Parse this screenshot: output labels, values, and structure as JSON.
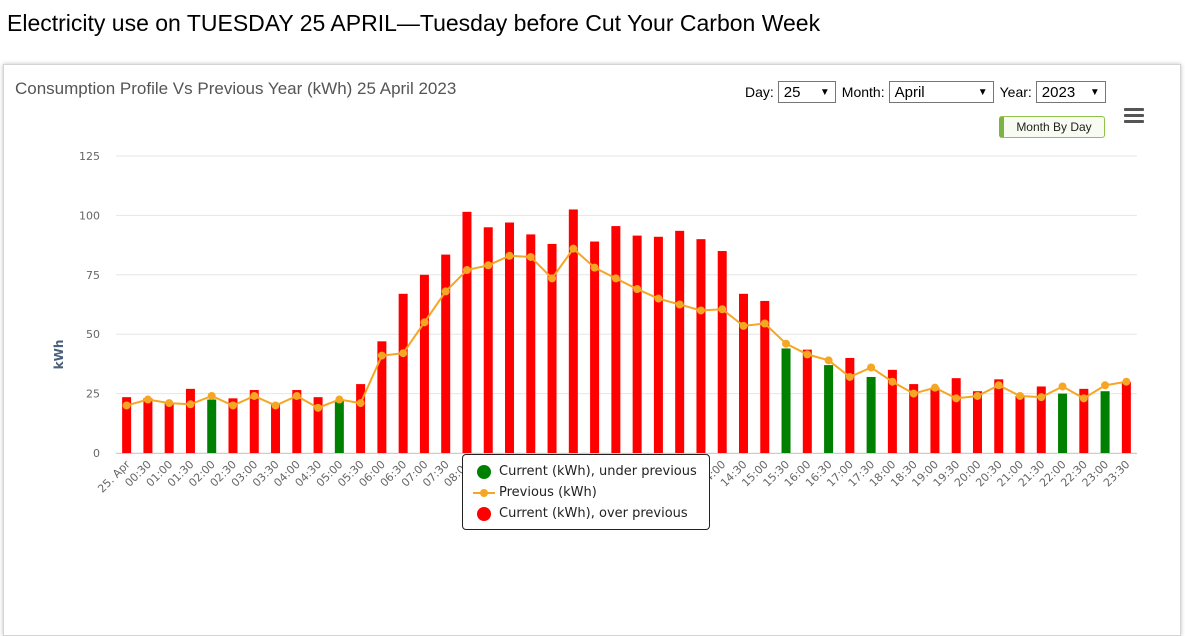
{
  "page": {
    "heading": "Electricity use on TUESDAY 25 APRIL—Tuesday before Cut Your Carbon Week"
  },
  "controls": {
    "day_label": "Day:",
    "day_value": "25",
    "month_label": "Month:",
    "month_value": "April",
    "year_label": "Year:",
    "year_value": "2023",
    "month_by_day_label": "Month By Day"
  },
  "colors": {
    "over": "#ff0000",
    "under": "#008000",
    "previous": "#f5a623",
    "grid": "#e6e6e6"
  },
  "icons": {
    "menu": "hamburger-menu-icon"
  },
  "chart_data": {
    "type": "bar",
    "title": "Consumption Profile Vs Previous Year (kWh) 25 April 2023",
    "ylabel": "kWh",
    "xlabel": "",
    "ylim": [
      0,
      125
    ],
    "yticks": [
      0,
      25,
      50,
      75,
      100,
      125
    ],
    "grid": true,
    "legend_position": "bottom-center",
    "categories": [
      "25. Apr",
      "00:30",
      "01:00",
      "01:30",
      "02:00",
      "02:30",
      "03:00",
      "03:30",
      "04:00",
      "04:30",
      "05:00",
      "05:30",
      "06:00",
      "06:30",
      "07:00",
      "07:30",
      "08:00",
      "08:30",
      "09:00",
      "09:30",
      "10:00",
      "10:30",
      "11:00",
      "11:30",
      "12:00",
      "12:30",
      "13:00",
      "13:30",
      "14:00",
      "14:30",
      "15:00",
      "15:30",
      "16:00",
      "16:30",
      "17:00",
      "17:30",
      "18:00",
      "18:30",
      "19:00",
      "19:30",
      "20:00",
      "20:30",
      "21:00",
      "21:30",
      "22:00",
      "22:30",
      "23:00",
      "23:30"
    ],
    "series": [
      {
        "name": "Current (kWh), under previous",
        "kind": "bar",
        "color": "#008000"
      },
      {
        "name": "Previous (kWh)",
        "kind": "line",
        "color": "#f5a623",
        "values": [
          20,
          22.5,
          21,
          20.5,
          24,
          20,
          24,
          20,
          24,
          19,
          22.5,
          21,
          41,
          42,
          55,
          68,
          77,
          79,
          83,
          82.5,
          73.5,
          86,
          78,
          73.5,
          69,
          65,
          62.5,
          60,
          60.5,
          53.5,
          54.5,
          46,
          41.5,
          39,
          32,
          36,
          30,
          25,
          27.5,
          23,
          24,
          28.5,
          24,
          23.5,
          28,
          23,
          28.5,
          30
        ]
      },
      {
        "name": "Current (kWh), over previous",
        "kind": "bar",
        "color": "#ff0000"
      }
    ],
    "current_values": [
      23.5,
      23,
      21,
      27,
      22.5,
      23,
      26.5,
      21,
      26.5,
      23.5,
      22,
      29,
      47,
      67,
      75,
      83.5,
      101.5,
      95,
      97,
      92,
      88,
      102.5,
      89,
      95.5,
      91.5,
      91,
      93.5,
      90,
      85,
      67,
      64,
      44,
      43.5,
      37,
      40,
      32,
      35,
      29,
      27.5,
      31.5,
      26,
      31,
      24,
      28,
      25,
      27,
      26,
      30
    ]
  }
}
